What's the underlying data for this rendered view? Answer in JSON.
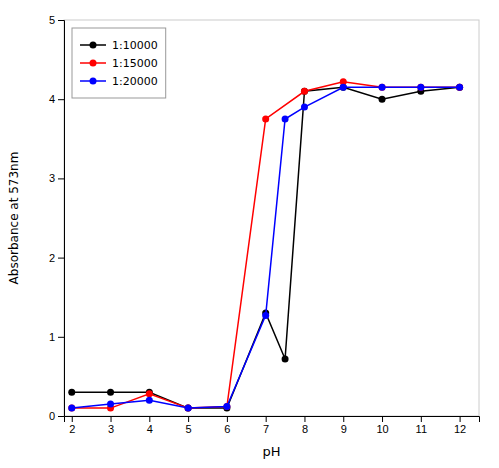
{
  "chart_data": {
    "type": "line",
    "xlabel": "pH",
    "ylabel": "Absorbance at 573nm",
    "series": [
      {
        "name": "1:10000",
        "color": "#000000",
        "marker": "circle",
        "x": [
          2,
          3,
          4,
          5,
          6,
          7,
          7.5,
          8,
          9,
          10,
          11,
          12
        ],
        "values": [
          0.3,
          0.3,
          0.3,
          0.1,
          0.1,
          1.3,
          0.72,
          4.1,
          4.15,
          4.0,
          4.1,
          4.15
        ]
      },
      {
        "name": "1:15000",
        "color": "#ff0000",
        "marker": "circle",
        "x": [
          2,
          3,
          4,
          5,
          6,
          7,
          8,
          9,
          10,
          11,
          12
        ],
        "values": [
          0.1,
          0.1,
          0.28,
          0.1,
          0.12,
          3.75,
          4.1,
          4.22,
          4.15,
          4.15,
          4.15
        ]
      },
      {
        "name": "1:20000",
        "color": "#0000ff",
        "marker": "circle",
        "x": [
          2,
          3,
          4,
          5,
          6,
          7,
          7.5,
          8,
          9,
          10,
          11,
          12
        ],
        "values": [
          0.1,
          0.15,
          0.2,
          0.1,
          0.12,
          1.27,
          3.75,
          3.9,
          4.15,
          4.15,
          4.15,
          4.15
        ]
      }
    ],
    "xlim": [
      1.8,
      12.5
    ],
    "ylim": [
      0,
      5
    ],
    "xticks": [
      2,
      3,
      4,
      5,
      6,
      7,
      8,
      9,
      10,
      11,
      12
    ],
    "yticks": [
      0,
      1,
      2,
      3,
      4,
      5
    ],
    "grid": false,
    "legend": "upper left"
  }
}
